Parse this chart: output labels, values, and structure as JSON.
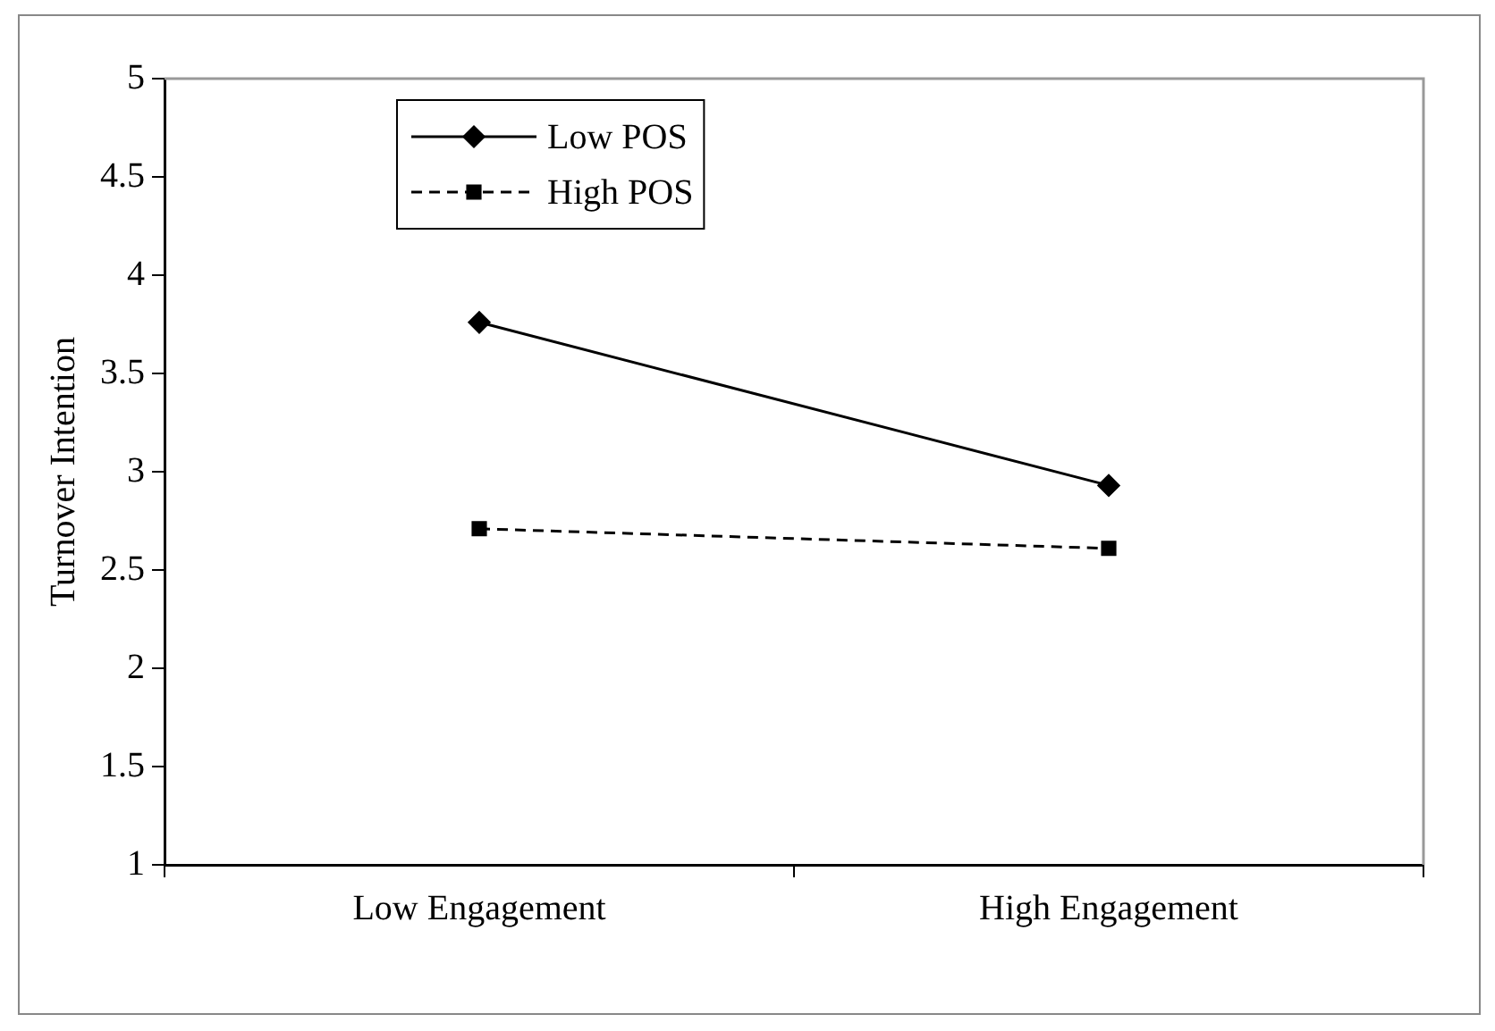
{
  "chart_data": {
    "type": "line",
    "ylabel": "Turnover Intention",
    "categories": [
      "Low Engagement",
      "High Engagement"
    ],
    "series": [
      {
        "name": "Low POS",
        "color": "#000000",
        "values": [
          3.76,
          2.93
        ],
        "marker": "diamond",
        "line_style": "solid"
      },
      {
        "name": "High POS",
        "color": "#000000",
        "values": [
          2.71,
          2.61
        ],
        "marker": "square",
        "line_style": "dashed"
      }
    ],
    "ylim": [
      1,
      5
    ],
    "yticks": [
      1,
      1.5,
      2,
      2.5,
      3,
      3.5,
      4,
      4.5,
      5
    ],
    "grid": false,
    "legend": "top left"
  }
}
